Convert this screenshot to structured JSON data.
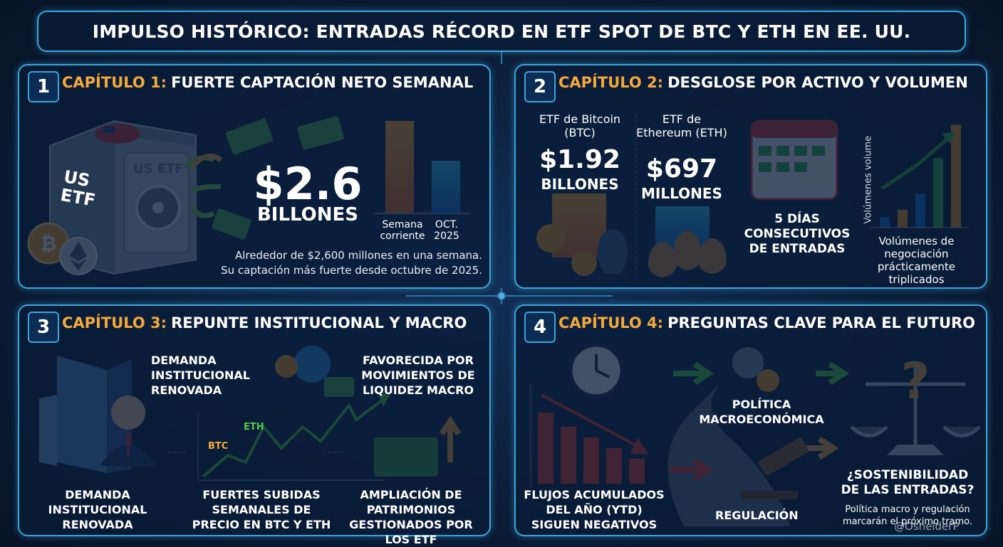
{
  "header": {
    "title": "IMPULSO HISTÓRICO: ENTRADAS RÉCORD EN ETF SPOT DE BTC Y ETH EN EE. UU."
  },
  "panels": [
    {
      "number": "1",
      "chapter": "CAPÍTULO 1:",
      "heading": "FUERTE CAPTACIÓN NETO SEMANAL",
      "safe_side_label": "US ETF",
      "safe_front_label": "US ETF",
      "amount": "$2.6",
      "amount_unit": "BILLONES",
      "bar_labels": [
        "Semana corriente",
        "OCT. 2025"
      ],
      "description": [
        "Alrededor de $2,600 millones en una semana.",
        "Su captación más fuerte desde octubre de 2025."
      ]
    },
    {
      "number": "2",
      "chapter": "CAPÍTULO 2:",
      "heading": "DESGLOSE POR ACTIVO Y VOLUMEN",
      "btc_label": "ETF de Bitcoin (BTC)",
      "btc_amount": "$1.92",
      "btc_unit": "BILLONES",
      "eth_label": "ETF de Ethereum (ETH)",
      "eth_amount": "$697",
      "eth_unit": "MILLONES",
      "streak": "5 DÍAS CONSECUTIVOS DE ENTRADAS",
      "volume_axis": "Volúmenes volume",
      "volume_note": "Volúmenes de negociación prácticamente triplicados"
    },
    {
      "number": "3",
      "chapter": "CAPÍTULO 3:",
      "heading": "REPUNTE INSTITUCIONAL Y MACRO",
      "demand_top": "DEMANDA INSTITUCIONAL RENOVADA",
      "macro": "FAVORECIDA POR MOVIMIENTOS DE LIQUIDEZ MACRO",
      "line_btc": "BTC",
      "line_eth": "ETH",
      "bottom": [
        "DEMANDA INSTITUCIONAL RENOVADA",
        "FUERTES SUBIDAS SEMANALES DE PRECIO EN BTC Y ETH",
        "AMPLIACIÓN DE PATRIMONIOS GESTIONADOS POR LOS ETF"
      ]
    },
    {
      "number": "4",
      "chapter": "CAPÍTULO 4:",
      "heading": "PREGUNTAS CLAVE PARA EL FUTURO",
      "ytd": "FLUJOS ACUMULADOS DEL AÑO (YTD) SIGUEN NEGATIVOS",
      "macro_policy": "POLÍTICA MACROECONÓMICA",
      "regulation": "REGULACIÓN",
      "question": "¿SOSTENIBILIDAD DE LAS ENTRADAS?",
      "note": "Política macro y regulación marcarán el próximo tramo."
    }
  ],
  "watermark": "@OsneiderP"
}
